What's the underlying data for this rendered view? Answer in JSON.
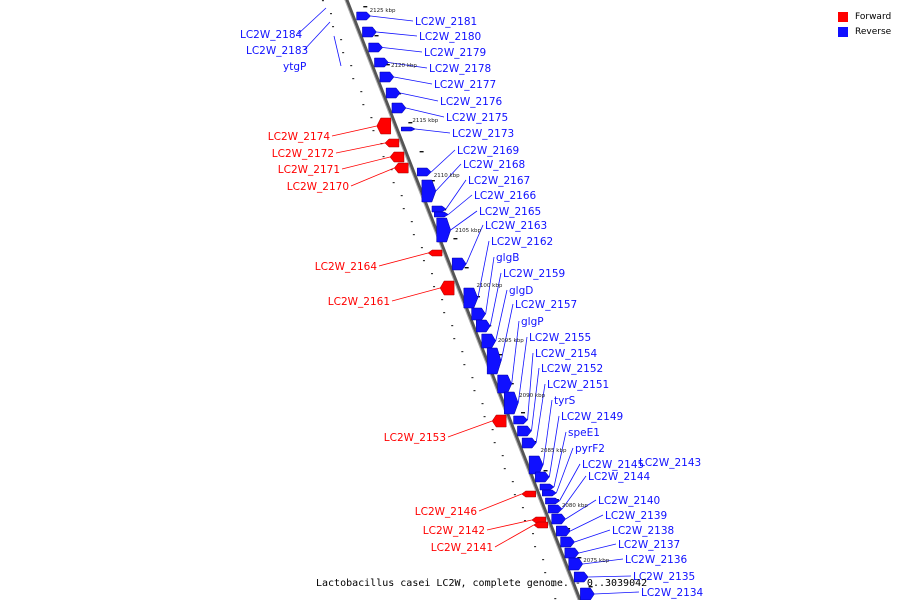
{
  "legend": {
    "forward_label": "Forward",
    "reverse_label": "Reverse",
    "forward_color": "#ff0000",
    "reverse_color": "#1010ff"
  },
  "caption": "Lactobacillus casei LC2W, complete genome. - 0..3039042",
  "axis": {
    "unit": "kbp",
    "ticks": [
      {
        "label": "2125 kbp",
        "pos": 2125
      },
      {
        "label": "2120 kbp",
        "pos": 2120
      },
      {
        "label": "2115 kbp",
        "pos": 2115
      },
      {
        "label": "2110 kbp",
        "pos": 2110
      },
      {
        "label": "2105 kbp",
        "pos": 2105
      },
      {
        "label": "2100 kbp",
        "pos": 2100
      },
      {
        "label": "2095 kbp",
        "pos": 2095
      },
      {
        "label": "2090 kbp",
        "pos": 2090
      },
      {
        "label": "2085 kbp",
        "pos": 2085
      },
      {
        "label": "2080 kbp",
        "pos": 2080
      },
      {
        "label": "2075 kbp",
        "pos": 2075
      }
    ]
  },
  "reverse_genes": [
    "LC2W_2181",
    "LC2W_2180",
    "LC2W_2179",
    "LC2W_2178",
    "LC2W_2177",
    "LC2W_2176",
    "LC2W_2175",
    "LC2W_2173",
    "LC2W_2169",
    "LC2W_2168",
    "LC2W_2167",
    "LC2W_2166",
    "LC2W_2165",
    "LC2W_2163",
    "LC2W_2162",
    "glgB",
    "LC2W_2159",
    "glgD",
    "LC2W_2157",
    "glgP",
    "LC2W_2155",
    "LC2W_2154",
    "LC2W_2152",
    "LC2W_2151",
    "tyrS",
    "LC2W_2149",
    "speE1",
    "pyrF2",
    "LC2W_2145",
    "LC2W_2144",
    "LC2W_2140",
    "LC2W_2139",
    "LC2W_2138",
    "LC2W_2137",
    "LC2W_2136",
    "LC2W_2135",
    "LC2W_2134"
  ],
  "extra_reverse_genes": [
    "LC2W_2143"
  ],
  "left_reverse_genes": [
    "LC2W_2184",
    "LC2W_2183",
    "ytgP"
  ],
  "forward_genes": [
    "LC2W_2174",
    "LC2W_2172",
    "LC2W_2171",
    "LC2W_2170",
    "LC2W_2164",
    "LC2W_2161",
    "LC2W_2153",
    "LC2W_2146",
    "LC2W_2142",
    "LC2W_2141"
  ]
}
